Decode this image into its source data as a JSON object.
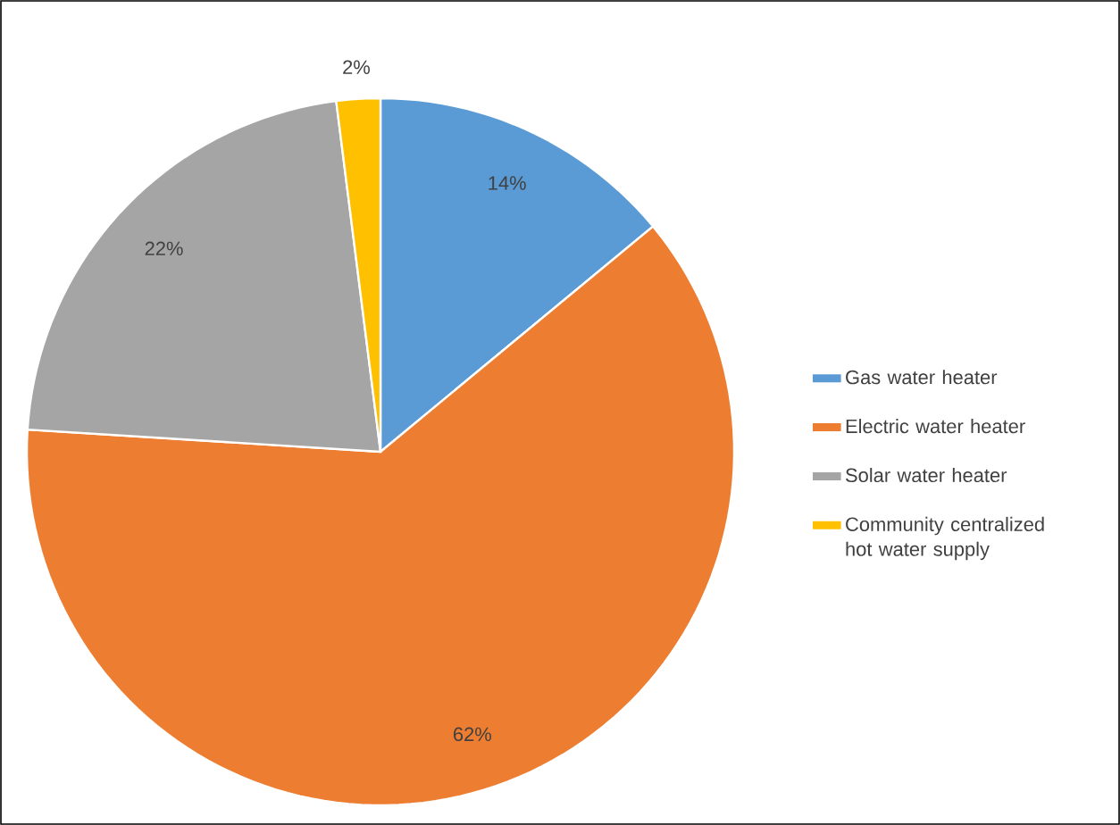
{
  "chart_data": {
    "type": "pie",
    "categories": [
      "Gas water heater",
      "Electric water heater",
      "Solar water heater",
      "Community centralized hot water supply"
    ],
    "values": [
      14,
      62,
      22,
      2
    ],
    "value_labels": [
      "14%",
      "62%",
      "22%",
      "2%"
    ],
    "colors": [
      "#5b9bd5",
      "#ed7d31",
      "#a5a5a5",
      "#ffc000"
    ],
    "legend": "right"
  }
}
